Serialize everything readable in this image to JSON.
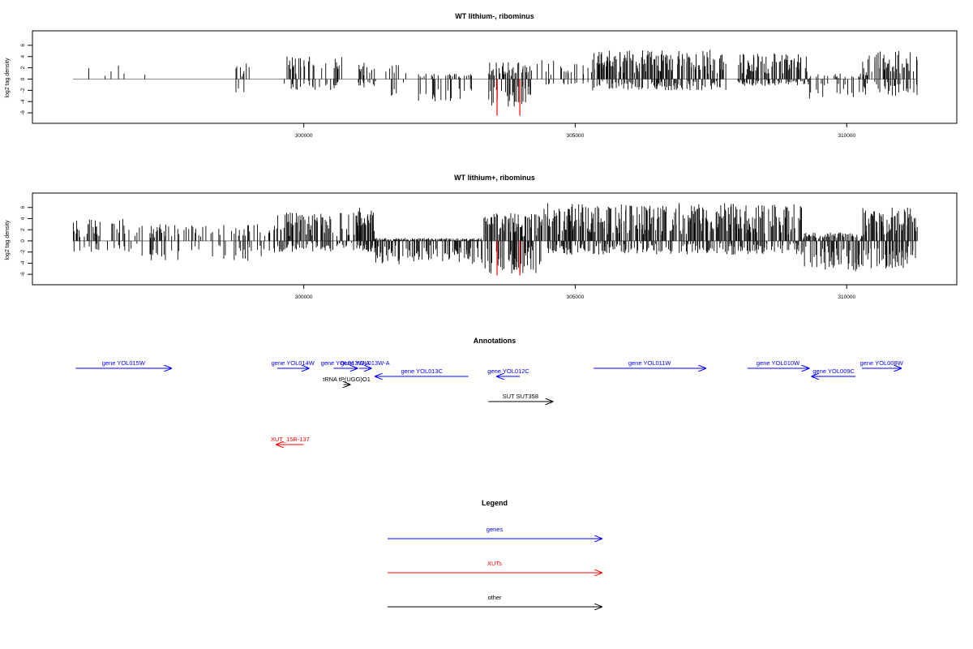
{
  "chart_data": [
    {
      "type": "bar",
      "title": "WT lithium-, ribominus",
      "ylabel": "log2 tag density",
      "ylim": [
        -7,
        8
      ],
      "yticks": [
        -6,
        -4,
        -2,
        0,
        2,
        4,
        6
      ],
      "xlim": [
        295600,
        311400
      ],
      "xticks": [
        300000,
        305000,
        310000
      ],
      "xtick_labels": [
        "300000",
        "305000",
        "310000"
      ],
      "grid": false,
      "highlight_color": "#ff0000",
      "highlights": [
        {
          "x": 303560,
          "y": -6.5
        },
        {
          "x": 303980,
          "y": -6.5
        }
      ],
      "regions": [
        {
          "from": 295750,
          "to": 297400,
          "density": 0.08,
          "pos_max": 2.8,
          "neg_max": 0
        },
        {
          "from": 298650,
          "to": 299000,
          "density": 0.2,
          "pos_max": 2.8,
          "neg_max": 3.0
        },
        {
          "from": 299600,
          "to": 300700,
          "density": 0.55,
          "pos_max": 4.0,
          "neg_max": 2.0
        },
        {
          "from": 301000,
          "to": 301350,
          "density": 0.7,
          "pos_max": 3.0,
          "neg_max": 1.5
        },
        {
          "from": 301400,
          "to": 301900,
          "density": 0.3,
          "pos_max": 2.8,
          "neg_max": 3.2
        },
        {
          "from": 302000,
          "to": 303100,
          "density": 0.45,
          "pos_max": 1.0,
          "neg_max": 4.2
        },
        {
          "from": 303400,
          "to": 304200,
          "density": 0.9,
          "pos_max": 3.0,
          "neg_max": 5.0
        },
        {
          "from": 304300,
          "to": 305300,
          "density": 0.35,
          "pos_max": 3.5,
          "neg_max": 1.0
        },
        {
          "from": 305300,
          "to": 307800,
          "density": 1.0,
          "pos_max": 5.2,
          "neg_max": 2.0
        },
        {
          "from": 308000,
          "to": 309300,
          "density": 1.0,
          "pos_max": 4.6,
          "neg_max": 1.2
        },
        {
          "from": 309300,
          "to": 310400,
          "density": 0.5,
          "pos_max": 1.0,
          "neg_max": 3.5
        },
        {
          "from": 310300,
          "to": 311300,
          "density": 0.75,
          "pos_max": 5.0,
          "neg_max": 3.0
        }
      ]
    },
    {
      "type": "bar",
      "title": "WT lithium+, ribominus",
      "ylabel": "log2 tag density",
      "ylim": [
        -7,
        8
      ],
      "yticks": [
        -6,
        -4,
        -2,
        0,
        2,
        4,
        6
      ],
      "xlim": [
        295600,
        311400
      ],
      "xticks": [
        300000,
        305000,
        310000
      ],
      "xtick_labels": [
        "300000",
        "305000",
        "310000"
      ],
      "grid": false,
      "highlight_color": "#ff0000",
      "highlights": [
        {
          "x": 303560,
          "y": -6.2
        },
        {
          "x": 303980,
          "y": -6.2
        }
      ],
      "regions": [
        {
          "from": 295750,
          "to": 297000,
          "density": 0.55,
          "pos_max": 4.0,
          "neg_max": 2.0
        },
        {
          "from": 297000,
          "to": 299500,
          "density": 0.45,
          "pos_max": 3.0,
          "neg_max": 3.8
        },
        {
          "from": 299500,
          "to": 301300,
          "density": 0.85,
          "pos_max": 5.2,
          "neg_max": 2.0
        },
        {
          "from": 301000,
          "to": 301300,
          "density": 1.0,
          "pos_max": 6.0,
          "neg_max": 2.0
        },
        {
          "from": 301300,
          "to": 303300,
          "density": 1.0,
          "pos_max": 0.5,
          "neg_max": 4.2
        },
        {
          "from": 303300,
          "to": 304400,
          "density": 1.0,
          "pos_max": 5.0,
          "neg_max": 6.0
        },
        {
          "from": 304400,
          "to": 309200,
          "density": 1.0,
          "pos_max": 6.8,
          "neg_max": 2.5
        },
        {
          "from": 309200,
          "to": 310300,
          "density": 1.0,
          "pos_max": 1.5,
          "neg_max": 5.5
        },
        {
          "from": 310300,
          "to": 311300,
          "density": 1.0,
          "pos_max": 6.0,
          "neg_max": 5.0
        }
      ]
    },
    {
      "type": "table",
      "title": "Annotations",
      "colors": {
        "gene": "#0000ff",
        "XUT": "#ff0000",
        "other": "#000000"
      },
      "features": [
        {
          "label": "gene YOL015W",
          "kind": "gene",
          "start": 295800,
          "end": 297560,
          "strand": "+",
          "row": 1
        },
        {
          "label": "gene YOL014W",
          "kind": "gene",
          "start": 299510,
          "end": 300090,
          "strand": "+",
          "row": 1
        },
        {
          "label": "gene YOL013W-A",
          "kind": "gene",
          "start": 300550,
          "end": 300980,
          "strand": "+",
          "row": 1
        },
        {
          "label": "gene YOL013W-A",
          "kind": "gene",
          "start": 301020,
          "end": 301240,
          "strand": "+",
          "row": 1
        },
        {
          "label": "gene YOL011W",
          "kind": "gene",
          "start": 305340,
          "end": 307400,
          "strand": "+",
          "row": 1
        },
        {
          "label": "gene YOL010W",
          "kind": "gene",
          "start": 308170,
          "end": 309300,
          "strand": "+",
          "row": 1
        },
        {
          "label": "gene YOL008W",
          "kind": "gene",
          "start": 310280,
          "end": 311000,
          "strand": "+",
          "row": 1
        },
        {
          "label": "gene YOL013C",
          "kind": "gene",
          "start": 301320,
          "end": 303030,
          "strand": "-",
          "row": 2
        },
        {
          "label": "gene YOL012C",
          "kind": "gene",
          "start": 303560,
          "end": 303980,
          "strand": "-",
          "row": 2
        },
        {
          "label": "gene YOL009C",
          "kind": "gene",
          "start": 309360,
          "end": 310160,
          "strand": "-",
          "row": 2
        },
        {
          "label": "tRNA tP(UGG)O1",
          "kind": "other",
          "start": 300730,
          "end": 300850,
          "strand": "+",
          "row": 3
        },
        {
          "label": "SUT SUT358",
          "kind": "other",
          "start": 303400,
          "end": 304580,
          "strand": "+",
          "row": 4
        },
        {
          "label": "XUT_15R-137",
          "kind": "XUT",
          "start": 299500,
          "end": 300000,
          "strand": "-",
          "row": 5
        }
      ]
    },
    {
      "type": "table",
      "title": "Legend",
      "entries": [
        {
          "label": "genes",
          "color": "#0000ff"
        },
        {
          "label": "XUTs",
          "color": "#ff0000"
        },
        {
          "label": "other",
          "color": "#000000"
        }
      ]
    }
  ]
}
